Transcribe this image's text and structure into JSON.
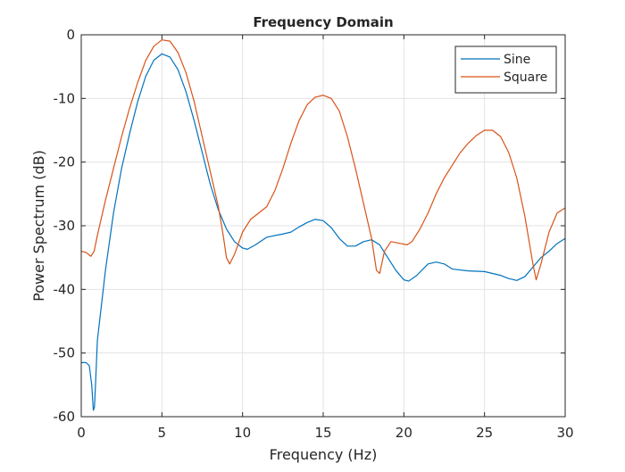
{
  "chart_data": {
    "type": "line",
    "title": "Frequency Domain",
    "xlabel": "Frequency (Hz)",
    "ylabel": "Power Spectrum (dB)",
    "xlim": [
      0,
      30
    ],
    "ylim": [
      -60,
      0
    ],
    "xticks": [
      0,
      5,
      10,
      15,
      20,
      25,
      30
    ],
    "yticks": [
      0,
      -10,
      -20,
      -30,
      -40,
      -50,
      -60
    ],
    "xtick_labels": [
      "0",
      "5",
      "10",
      "15",
      "20",
      "25",
      "30"
    ],
    "ytick_labels": [
      "0",
      "-10",
      "-20",
      "-30",
      "-40",
      "-50",
      "-60"
    ],
    "grid": true,
    "legend_position": "top-right",
    "series": [
      {
        "name": "Sine",
        "color": "#0072BD",
        "points": [
          [
            0,
            -51.5
          ],
          [
            0.3,
            -51.5
          ],
          [
            0.5,
            -52
          ],
          [
            0.65,
            -55
          ],
          [
            0.75,
            -59
          ],
          [
            0.82,
            -58.5
          ],
          [
            0.9,
            -54
          ],
          [
            1.0,
            -48
          ],
          [
            1.5,
            -37
          ],
          [
            2.0,
            -28
          ],
          [
            2.5,
            -21
          ],
          [
            3.0,
            -15.5
          ],
          [
            3.5,
            -10.5
          ],
          [
            4.0,
            -6.5
          ],
          [
            4.5,
            -4
          ],
          [
            5.0,
            -3
          ],
          [
            5.5,
            -3.5
          ],
          [
            6.0,
            -5.5
          ],
          [
            6.5,
            -9
          ],
          [
            7.0,
            -13.5
          ],
          [
            7.5,
            -18.5
          ],
          [
            8.0,
            -23.5
          ],
          [
            8.5,
            -27.5
          ],
          [
            9.0,
            -30.5
          ],
          [
            9.5,
            -32.5
          ],
          [
            10.0,
            -33.5
          ],
          [
            10.3,
            -33.7
          ],
          [
            10.8,
            -33
          ],
          [
            11.5,
            -31.8
          ],
          [
            12.5,
            -31.3
          ],
          [
            13.0,
            -31
          ],
          [
            13.5,
            -30.2
          ],
          [
            14.0,
            -29.5
          ],
          [
            14.5,
            -29
          ],
          [
            15.0,
            -29.2
          ],
          [
            15.5,
            -30.3
          ],
          [
            16.0,
            -32
          ],
          [
            16.5,
            -33.2
          ],
          [
            17.0,
            -33.2
          ],
          [
            17.5,
            -32.5
          ],
          [
            18.0,
            -32.2
          ],
          [
            18.5,
            -33
          ],
          [
            19.0,
            -35
          ],
          [
            19.5,
            -37
          ],
          [
            20.0,
            -38.5
          ],
          [
            20.3,
            -38.7
          ],
          [
            20.8,
            -37.8
          ],
          [
            21.5,
            -36
          ],
          [
            22.0,
            -35.7
          ],
          [
            22.5,
            -36
          ],
          [
            23.0,
            -36.8
          ],
          [
            24.0,
            -37.1
          ],
          [
            25.0,
            -37.2
          ],
          [
            26.0,
            -37.8
          ],
          [
            26.5,
            -38.3
          ],
          [
            27.0,
            -38.6
          ],
          [
            27.5,
            -38
          ],
          [
            28.0,
            -36.5
          ],
          [
            28.5,
            -35
          ],
          [
            29.0,
            -34
          ],
          [
            29.5,
            -32.8
          ],
          [
            30.0,
            -32
          ]
        ]
      },
      {
        "name": "Square",
        "color": "#D95319",
        "points": [
          [
            0,
            -34
          ],
          [
            0.3,
            -34.2
          ],
          [
            0.6,
            -34.8
          ],
          [
            0.8,
            -34
          ],
          [
            1.0,
            -31.5
          ],
          [
            1.5,
            -26
          ],
          [
            2.0,
            -21
          ],
          [
            2.5,
            -16
          ],
          [
            3.0,
            -11.5
          ],
          [
            3.5,
            -7.5
          ],
          [
            4.0,
            -4
          ],
          [
            4.5,
            -1.8
          ],
          [
            5.0,
            -0.8
          ],
          [
            5.5,
            -1
          ],
          [
            6.0,
            -2.8
          ],
          [
            6.5,
            -6
          ],
          [
            7.0,
            -10.5
          ],
          [
            7.5,
            -16
          ],
          [
            8.0,
            -21.5
          ],
          [
            8.5,
            -27
          ],
          [
            8.8,
            -31.5
          ],
          [
            9.0,
            -35
          ],
          [
            9.2,
            -36
          ],
          [
            9.5,
            -34.5
          ],
          [
            10.0,
            -31
          ],
          [
            10.5,
            -29
          ],
          [
            11.0,
            -28
          ],
          [
            11.5,
            -27
          ],
          [
            12.0,
            -24.5
          ],
          [
            12.5,
            -21
          ],
          [
            13.0,
            -17
          ],
          [
            13.5,
            -13.5
          ],
          [
            14.0,
            -11
          ],
          [
            14.5,
            -9.8
          ],
          [
            15.0,
            -9.5
          ],
          [
            15.5,
            -10
          ],
          [
            16.0,
            -12
          ],
          [
            16.5,
            -16
          ],
          [
            17.0,
            -21
          ],
          [
            17.5,
            -26.5
          ],
          [
            18.0,
            -32
          ],
          [
            18.3,
            -37
          ],
          [
            18.5,
            -37.5
          ],
          [
            18.8,
            -34
          ],
          [
            19.2,
            -32.5
          ],
          [
            19.8,
            -32.8
          ],
          [
            20.2,
            -33
          ],
          [
            20.5,
            -32.5
          ],
          [
            21.0,
            -30.5
          ],
          [
            21.5,
            -28
          ],
          [
            22.0,
            -25
          ],
          [
            22.5,
            -22.5
          ],
          [
            23.0,
            -20.5
          ],
          [
            23.5,
            -18.5
          ],
          [
            24.0,
            -17
          ],
          [
            24.5,
            -15.8
          ],
          [
            25.0,
            -15
          ],
          [
            25.5,
            -15
          ],
          [
            26.0,
            -16
          ],
          [
            26.5,
            -18.5
          ],
          [
            27.0,
            -22.5
          ],
          [
            27.5,
            -28.5
          ],
          [
            28.0,
            -36
          ],
          [
            28.2,
            -38.5
          ],
          [
            28.5,
            -36
          ],
          [
            29.0,
            -31
          ],
          [
            29.5,
            -28
          ],
          [
            30.0,
            -27.2
          ]
        ]
      }
    ]
  }
}
